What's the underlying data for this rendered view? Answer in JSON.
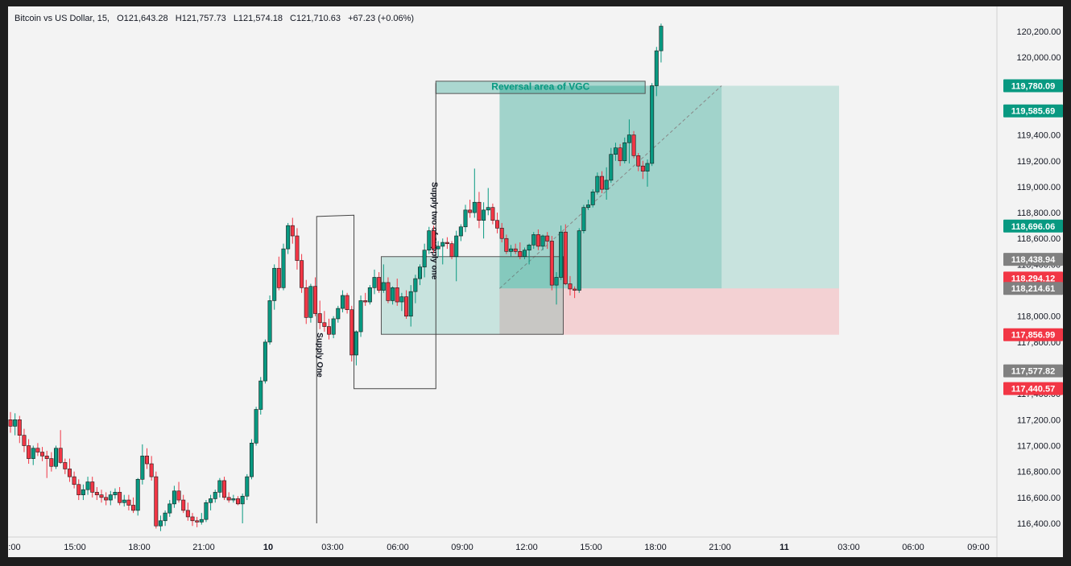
{
  "legend": {
    "symbol": "Bitcoin vs US Dollar, 15,",
    "open": "O121,643.28",
    "high": "H121,757.73",
    "low": "L121,574.18",
    "close": "C121,710.63",
    "change": "+67.23 (+0.06%)"
  },
  "chart_data": {
    "type": "candlestick",
    "timeframe": "15",
    "symbol": "Bitcoin vs US Dollar",
    "ylim": [
      116250,
      120270
    ],
    "y_ticks": [
      "116,400.00",
      "116,600.00",
      "116,800.00",
      "117,000.00",
      "117,200.00",
      "117,400.00",
      "117,600.00",
      "117,800.00",
      "118,000.00",
      "118,200.00",
      "118,400.00",
      "118,600.00",
      "118,800.00",
      "119,000.00",
      "119,200.00",
      "119,400.00",
      "119,600.00",
      "119,800.00",
      "120,000.00",
      "120,200.00"
    ],
    "x_ticks": [
      ":00",
      "15:00",
      "18:00",
      "21:00",
      "10",
      "03:00",
      "06:00",
      "09:00",
      "12:00",
      "15:00",
      "18:00",
      "21:00",
      "11",
      "03:00",
      "06:00",
      "09:00"
    ],
    "x_ticks_bold": [
      "10",
      "11"
    ],
    "price_labels": [
      {
        "text": "119,780.09",
        "value": 119780.09,
        "color": "#089981"
      },
      {
        "text": "119,585.69",
        "value": 119585.69,
        "color": "#089981"
      },
      {
        "text": "118,696.06",
        "value": 118696.06,
        "color": "#089981"
      },
      {
        "text": "118,438.94",
        "value": 118438.94,
        "color": "#808080"
      },
      {
        "text": "118,294.12",
        "value": 118294.12,
        "color": "#f23645"
      },
      {
        "text": "118,214.61",
        "value": 118214.61,
        "color": "#808080"
      },
      {
        "text": "117,856.99",
        "value": 117856.99,
        "color": "#f23645"
      },
      {
        "text": "117,577.82",
        "value": 117577.82,
        "color": "#808080"
      },
      {
        "text": "117,440.57",
        "value": 117440.57,
        "color": "#f23645"
      }
    ],
    "annotations": {
      "reversal_label": "Reversal area of VGC",
      "supply_one": "Supply One",
      "supply_two": "Supply two of supply one"
    },
    "position": {
      "entry": 118214.61,
      "target": 119780.09,
      "stop": 117856.99
    },
    "colors": {
      "up": "#089981",
      "down": "#f23645",
      "target_zone": "#089981",
      "stop_zone": "#f23645"
    },
    "candles": [
      [
        117200,
        117260,
        117100,
        117150
      ],
      [
        117150,
        117250,
        117080,
        117200
      ],
      [
        117200,
        117230,
        117020,
        117080
      ],
      [
        117080,
        117130,
        116950,
        117000
      ],
      [
        117000,
        117050,
        116860,
        116900
      ],
      [
        116900,
        117000,
        116850,
        116980
      ],
      [
        116980,
        117020,
        116920,
        116950
      ],
      [
        116950,
        116990,
        116880,
        116920
      ],
      [
        116920,
        116960,
        116750,
        116900
      ],
      [
        116900,
        116950,
        116800,
        116840
      ],
      [
        116840,
        117000,
        116820,
        116980
      ],
      [
        116980,
        117120,
        116860,
        116870
      ],
      [
        116870,
        116900,
        116780,
        116820
      ],
      [
        116820,
        116900,
        116720,
        116760
      ],
      [
        116760,
        116800,
        116670,
        116700
      ],
      [
        116700,
        116740,
        116580,
        116620
      ],
      [
        116620,
        116700,
        116580,
        116660
      ],
      [
        116660,
        116760,
        116620,
        116720
      ],
      [
        116720,
        116760,
        116600,
        116640
      ],
      [
        116640,
        116680,
        116580,
        116620
      ],
      [
        116620,
        116660,
        116560,
        116600
      ],
      [
        116600,
        116640,
        116540,
        116580
      ],
      [
        116580,
        116650,
        116540,
        116620
      ],
      [
        116620,
        116670,
        116590,
        116640
      ],
      [
        116640,
        116680,
        116540,
        116560
      ],
      [
        116560,
        116620,
        116530,
        116580
      ],
      [
        116580,
        116620,
        116500,
        116540
      ],
      [
        116540,
        116600,
        116480,
        116500
      ],
      [
        116500,
        116750,
        116460,
        116740
      ],
      [
        116740,
        117010,
        116700,
        116920
      ],
      [
        116920,
        116980,
        116820,
        116860
      ],
      [
        116860,
        116920,
        116730,
        116760
      ],
      [
        116760,
        116800,
        116360,
        116380
      ],
      [
        116380,
        116460,
        116340,
        116420
      ],
      [
        116420,
        116500,
        116380,
        116480
      ],
      [
        116480,
        116580,
        116450,
        116550
      ],
      [
        116550,
        116690,
        116520,
        116650
      ],
      [
        116650,
        116720,
        116560,
        116580
      ],
      [
        116580,
        116620,
        116480,
        116500
      ],
      [
        116500,
        116560,
        116420,
        116450
      ],
      [
        116450,
        116480,
        116380,
        116420
      ],
      [
        116420,
        116450,
        116370,
        116410
      ],
      [
        116410,
        116480,
        116390,
        116430
      ],
      [
        116430,
        116580,
        116410,
        116560
      ],
      [
        116560,
        116620,
        116500,
        116590
      ],
      [
        116590,
        116660,
        116560,
        116640
      ],
      [
        116640,
        116750,
        116600,
        116730
      ],
      [
        116730,
        116760,
        116580,
        116600
      ],
      [
        116600,
        116640,
        116560,
        116580
      ],
      [
        116580,
        116620,
        116560,
        116590
      ],
      [
        116590,
        116610,
        116540,
        116550
      ],
      [
        116550,
        116630,
        116400,
        116610
      ],
      [
        116610,
        116780,
        116580,
        116760
      ],
      [
        116760,
        117050,
        116740,
        117020
      ],
      [
        117020,
        117300,
        117000,
        117280
      ],
      [
        117280,
        117530,
        117240,
        117500
      ],
      [
        117500,
        117820,
        117480,
        117800
      ],
      [
        117800,
        118160,
        117780,
        118120
      ],
      [
        118120,
        118400,
        118050,
        118370
      ],
      [
        118370,
        118460,
        118200,
        118220
      ],
      [
        118220,
        118560,
        118200,
        118520
      ],
      [
        118520,
        118720,
        118480,
        118700
      ],
      [
        118700,
        118760,
        118560,
        118620
      ],
      [
        118620,
        118680,
        118360,
        118430
      ],
      [
        118430,
        118480,
        118180,
        118220
      ],
      [
        118220,
        118280,
        117940,
        117990
      ],
      [
        117990,
        118250,
        117950,
        118230
      ],
      [
        118230,
        118300,
        118000,
        118020
      ],
      [
        118020,
        118120,
        117900,
        117950
      ],
      [
        117950,
        118040,
        117880,
        117920
      ],
      [
        117920,
        117980,
        117820,
        117860
      ],
      [
        117860,
        118000,
        117830,
        117980
      ],
      [
        117980,
        118080,
        117950,
        118060
      ],
      [
        118060,
        118200,
        118030,
        118160
      ],
      [
        118160,
        118180,
        118020,
        118050
      ],
      [
        118050,
        118080,
        117650,
        117700
      ],
      [
        117700,
        117890,
        117620,
        117880
      ],
      [
        117880,
        118160,
        117840,
        118120
      ],
      [
        118120,
        118180,
        118080,
        118110
      ],
      [
        118110,
        118240,
        118090,
        118220
      ],
      [
        118220,
        118360,
        118170,
        118300
      ],
      [
        118300,
        118340,
        118180,
        118200
      ],
      [
        118200,
        118400,
        118180,
        118260
      ],
      [
        118260,
        118300,
        118100,
        118120
      ],
      [
        118120,
        118230,
        118090,
        118220
      ],
      [
        118220,
        118290,
        118080,
        118110
      ],
      [
        118110,
        118180,
        118040,
        118150
      ],
      [
        118150,
        118200,
        117980,
        118000
      ],
      [
        118000,
        118240,
        117920,
        118190
      ],
      [
        118190,
        118320,
        118100,
        118290
      ],
      [
        118290,
        118400,
        118240,
        118380
      ],
      [
        118380,
        118560,
        118300,
        118510
      ],
      [
        118510,
        118690,
        118480,
        118660
      ],
      [
        118660,
        118700,
        118490,
        118520
      ],
      [
        118520,
        118580,
        118460,
        118540
      ],
      [
        118540,
        118600,
        118400,
        118570
      ],
      [
        118570,
        118610,
        118520,
        118560
      ],
      [
        118560,
        118580,
        118440,
        118460
      ],
      [
        118460,
        118660,
        118270,
        118620
      ],
      [
        118620,
        118710,
        118580,
        118690
      ],
      [
        118690,
        118860,
        118650,
        118820
      ],
      [
        118820,
        118900,
        118760,
        118800
      ],
      [
        118800,
        119140,
        118760,
        118880
      ],
      [
        118880,
        118960,
        118680,
        118740
      ],
      [
        118740,
        118880,
        118600,
        118820
      ],
      [
        118820,
        118990,
        118780,
        118840
      ],
      [
        118840,
        118870,
        118710,
        118740
      ],
      [
        118740,
        118800,
        118640,
        118680
      ],
      [
        118680,
        118720,
        118570,
        118600
      ],
      [
        118600,
        118630,
        118480,
        118500
      ],
      [
        118500,
        118550,
        118460,
        118520
      ],
      [
        118520,
        118560,
        118480,
        118500
      ],
      [
        118500,
        118570,
        118440,
        118460
      ],
      [
        118460,
        118530,
        118440,
        118510
      ],
      [
        118510,
        118560,
        118400,
        118550
      ],
      [
        118550,
        118650,
        118520,
        118630
      ],
      [
        118630,
        118670,
        118510,
        118540
      ],
      [
        118540,
        118630,
        118510,
        118620
      ],
      [
        118620,
        118650,
        118520,
        118580
      ],
      [
        118580,
        118620,
        118200,
        118240
      ],
      [
        118240,
        118340,
        118090,
        118300
      ],
      [
        118300,
        118700,
        118280,
        118650
      ],
      [
        118650,
        118710,
        118240,
        118250
      ],
      [
        118250,
        118310,
        118160,
        118210
      ],
      [
        118210,
        118230,
        118140,
        118200
      ],
      [
        118200,
        118680,
        118180,
        118660
      ],
      [
        118660,
        118860,
        118640,
        118840
      ],
      [
        118840,
        118900,
        118820,
        118860
      ],
      [
        118860,
        118980,
        118840,
        118960
      ],
      [
        118960,
        119110,
        118940,
        119080
      ],
      [
        119080,
        119120,
        118950,
        118980
      ],
      [
        118980,
        119150,
        118900,
        119050
      ],
      [
        119050,
        119300,
        119030,
        119250
      ],
      [
        119250,
        119340,
        119200,
        119300
      ],
      [
        119300,
        119330,
        119160,
        119200
      ],
      [
        119200,
        119380,
        119180,
        119340
      ],
      [
        119340,
        119520,
        119180,
        119400
      ],
      [
        119400,
        119430,
        119220,
        119240
      ],
      [
        119240,
        119260,
        119120,
        119160
      ],
      [
        119160,
        119200,
        119060,
        119120
      ],
      [
        119120,
        119210,
        119000,
        119180
      ],
      [
        119180,
        119800,
        119160,
        119780
      ],
      [
        119780,
        120080,
        119700,
        120050
      ],
      [
        120050,
        120260,
        119960,
        120240
      ]
    ]
  }
}
